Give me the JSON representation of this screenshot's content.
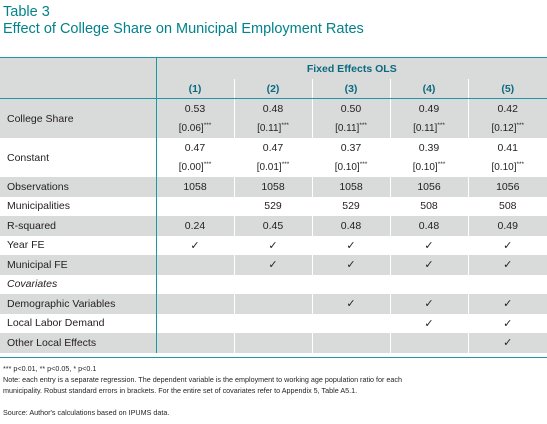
{
  "title": {
    "line1": "Table 3",
    "line2": "Effect of College Share on Municipal Employment Rates"
  },
  "header": {
    "group": "Fixed Effects OLS",
    "columns": [
      "(1)",
      "(2)",
      "(3)",
      "(4)",
      "(5)"
    ]
  },
  "rows": {
    "college_share": {
      "label": "College Share",
      "coef": [
        "0.53",
        "0.48",
        "0.50",
        "0.49",
        "0.42"
      ],
      "se": [
        "[0.06]",
        "[0.11]",
        "[0.11]",
        "[0.11]",
        "[0.12]"
      ],
      "stars": [
        "***",
        "***",
        "***",
        "***",
        "***"
      ]
    },
    "constant": {
      "label": "Constant",
      "coef": [
        "0.47",
        "0.47",
        "0.37",
        "0.39",
        "0.41"
      ],
      "se": [
        "[0.00]",
        "[0.01]",
        "[0.10]",
        "[0.10]",
        "[0.10]"
      ],
      "stars": [
        "***",
        "***",
        "***",
        "***",
        "***"
      ]
    },
    "observations": {
      "label": "Observations",
      "values": [
        "1058",
        "1058",
        "1058",
        "1056",
        "1056"
      ]
    },
    "municipalities": {
      "label": "Municipalities",
      "values": [
        "",
        "529",
        "529",
        "508",
        "508"
      ]
    },
    "r_squared": {
      "label": "R-squared",
      "values": [
        "0.24",
        "0.45",
        "0.48",
        "0.48",
        "0.49"
      ]
    },
    "year_fe": {
      "label": "Year FE",
      "checks": [
        true,
        true,
        true,
        true,
        true
      ]
    },
    "municipal_fe": {
      "label": "Municipal FE",
      "checks": [
        false,
        true,
        true,
        true,
        true
      ]
    },
    "covariates": {
      "label": "Covariates"
    },
    "demographic": {
      "label": "Demographic Variables",
      "checks": [
        false,
        false,
        true,
        true,
        true
      ]
    },
    "labor_demand": {
      "label": "Local Labor Demand",
      "checks": [
        false,
        false,
        false,
        true,
        true
      ]
    },
    "other_effects": {
      "label": "Other Local Effects",
      "checks": [
        false,
        false,
        false,
        false,
        true
      ]
    },
    "check_glyph": "✓"
  },
  "notes": {
    "significance": "*** p<0.01, ** p<0.05, * p<0.1",
    "line1": "Note: each entry is a separate regression. The dependent variable is the employment to working age population ratio for each",
    "line2": "municipality. Robust standard errors in brackets. For the entire set of covariates refer to Appendix 5, Table A5.1.",
    "source": "Source: Author's calculations based on IPUMS data."
  },
  "colors": {
    "title": "#00838a",
    "rule": "#1a9aa0",
    "shade": "#d9dada",
    "header_text": "#0a6a80"
  }
}
